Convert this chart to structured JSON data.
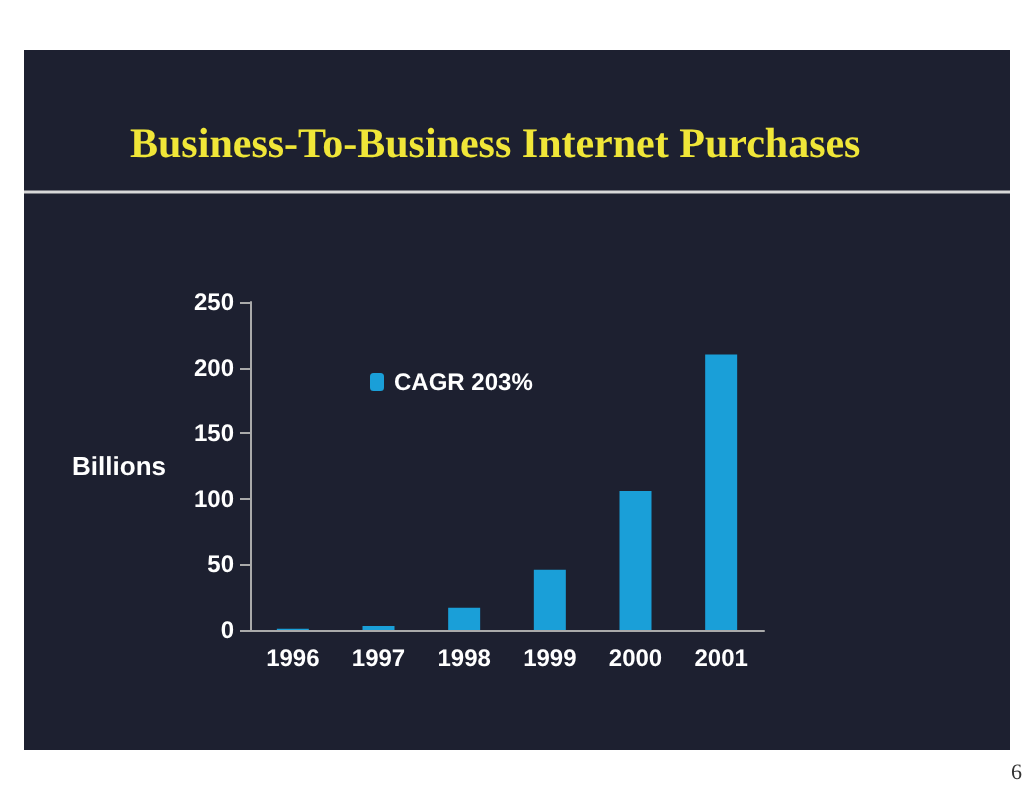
{
  "chart_data": {
    "type": "bar",
    "title": "Business-To-Business Internet Purchases",
    "ylabel": "Billions",
    "categories": [
      "1996",
      "1997",
      "1998",
      "1999",
      "2000",
      "2001"
    ],
    "series": [
      {
        "name": "CAGR 203%",
        "color": "#1a9fd8",
        "values": [
          1,
          3,
          17,
          46,
          106,
          210
        ]
      }
    ],
    "ylim": [
      0,
      250
    ],
    "yticks": [
      0,
      50,
      100,
      150,
      200,
      250
    ],
    "grid": false,
    "legend": "top",
    "annotations": [
      "6"
    ]
  }
}
